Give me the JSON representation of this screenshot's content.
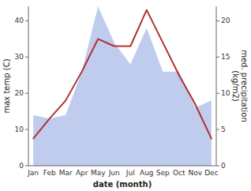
{
  "chart_data": {
    "type": "line",
    "categories": [
      "Jan",
      "Feb",
      "Mar",
      "Apr",
      "May",
      "Jun",
      "Jul",
      "Aug",
      "Sep",
      "Oct",
      "Nov",
      "Dec"
    ],
    "xlabel": "date (month)",
    "ylabel": "max temp (C)",
    "y2label": "med. precipitation\n(kg/m2)",
    "ylim": [
      0,
      44
    ],
    "yticks": [
      0,
      10,
      20,
      30,
      40
    ],
    "y2lim": [
      0,
      22
    ],
    "y2ticks": [
      0,
      5,
      10,
      15,
      20
    ],
    "series": [
      {
        "type": "area",
        "axis": "y2",
        "color": "#c0ccee",
        "values": [
          7,
          6.5,
          7,
          13,
          22,
          17,
          14,
          19,
          13,
          13,
          8,
          9
        ]
      },
      {
        "type": "line",
        "color": "#b03030",
        "values": [
          7.5,
          13,
          18,
          26,
          35,
          33,
          33,
          43,
          34,
          25,
          17,
          7.5
        ]
      }
    ]
  }
}
